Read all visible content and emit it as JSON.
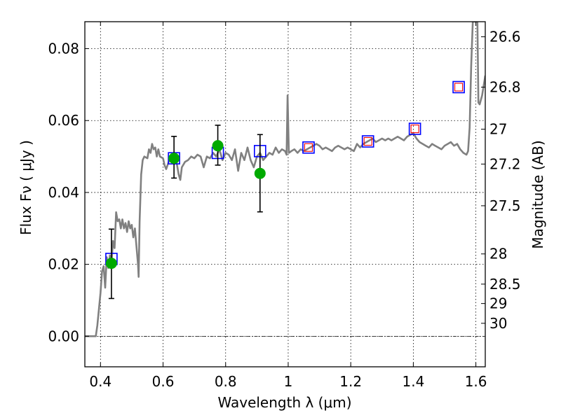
{
  "chart_data": {
    "type": "scatter",
    "xlabel": "Wavelength  λ (μm)",
    "ylabel": "Flux  Fν  ( μJy )",
    "ylabel_right": "Magnitude (AB)",
    "xlim": [
      0.35,
      1.63
    ],
    "ylim": [
      -0.0085,
      0.0875
    ],
    "x_ticks": [
      0.4,
      0.6,
      0.8,
      1.0,
      1.2,
      1.4,
      1.6
    ],
    "x_tick_labels": [
      "0.4",
      "0.6",
      "0.8",
      "1",
      "1.2",
      "1.4",
      "1.6"
    ],
    "y_ticks": [
      0.0,
      0.02,
      0.04,
      0.06,
      0.08
    ],
    "y_tick_labels": [
      "0.00",
      "0.02",
      "0.04",
      "0.06",
      "0.08"
    ],
    "right_ticks": [
      {
        "label": "26.6",
        "flux": 0.0833
      },
      {
        "label": "26.8",
        "flux": 0.0693
      },
      {
        "label": "27",
        "flux": 0.0576
      },
      {
        "label": "27.2",
        "flux": 0.0479
      },
      {
        "label": "27.5",
        "flux": 0.0363
      },
      {
        "label": "28",
        "flux": 0.0229
      },
      {
        "label": "28.5",
        "flux": 0.0145
      },
      {
        "label": "29",
        "flux": 0.0091
      },
      {
        "label": "30",
        "flux": 0.0036
      }
    ],
    "grid": true,
    "zero_line": 0.0,
    "colors": {
      "spectrum": "#808080",
      "model_box": "#0000ff",
      "inner_box": "#ff0000",
      "observed": "#00aa00",
      "errorbar": "#000000"
    },
    "series": [
      {
        "kind": "line",
        "points": [
          [
            0.35,
            0.0
          ],
          [
            0.385,
            0.0
          ],
          [
            0.39,
            0.003
          ],
          [
            0.4,
            0.012
          ],
          [
            0.405,
            0.018
          ],
          [
            0.41,
            0.0195
          ],
          [
            0.415,
            0.0135
          ],
          [
            0.42,
            0.022
          ],
          [
            0.425,
            0.019
          ],
          [
            0.43,
            0.0225
          ],
          [
            0.435,
            0.02
          ],
          [
            0.44,
            0.0265
          ],
          [
            0.445,
            0.0245
          ],
          [
            0.45,
            0.0345
          ],
          [
            0.455,
            0.032
          ],
          [
            0.46,
            0.0325
          ],
          [
            0.465,
            0.03
          ],
          [
            0.47,
            0.0325
          ],
          [
            0.475,
            0.03
          ],
          [
            0.48,
            0.0315
          ],
          [
            0.485,
            0.029
          ],
          [
            0.49,
            0.032
          ],
          [
            0.495,
            0.03
          ],
          [
            0.5,
            0.031
          ],
          [
            0.505,
            0.0275
          ],
          [
            0.51,
            0.03
          ],
          [
            0.515,
            0.025
          ],
          [
            0.52,
            0.02
          ],
          [
            0.522,
            0.0165
          ],
          [
            0.525,
            0.032
          ],
          [
            0.53,
            0.045
          ],
          [
            0.535,
            0.049
          ],
          [
            0.54,
            0.05
          ],
          [
            0.55,
            0.0495
          ],
          [
            0.555,
            0.052
          ],
          [
            0.56,
            0.051
          ],
          [
            0.565,
            0.0535
          ],
          [
            0.57,
            0.052
          ],
          [
            0.575,
            0.0525
          ],
          [
            0.58,
            0.05
          ],
          [
            0.585,
            0.052
          ],
          [
            0.59,
            0.05
          ],
          [
            0.6,
            0.0495
          ],
          [
            0.605,
            0.0475
          ],
          [
            0.61,
            0.0465
          ],
          [
            0.62,
            0.049
          ],
          [
            0.625,
            0.0505
          ],
          [
            0.63,
            0.0495
          ],
          [
            0.64,
            0.05
          ],
          [
            0.645,
            0.0475
          ],
          [
            0.65,
            0.045
          ],
          [
            0.655,
            0.0435
          ],
          [
            0.66,
            0.047
          ],
          [
            0.67,
            0.0485
          ],
          [
            0.68,
            0.049
          ],
          [
            0.69,
            0.05
          ],
          [
            0.7,
            0.0495
          ],
          [
            0.71,
            0.0505
          ],
          [
            0.72,
            0.05
          ],
          [
            0.73,
            0.047
          ],
          [
            0.74,
            0.05
          ],
          [
            0.75,
            0.0495
          ],
          [
            0.76,
            0.051
          ],
          [
            0.77,
            0.05
          ],
          [
            0.78,
            0.052
          ],
          [
            0.79,
            0.049
          ],
          [
            0.8,
            0.051
          ],
          [
            0.81,
            0.0505
          ],
          [
            0.82,
            0.049
          ],
          [
            0.83,
            0.052
          ],
          [
            0.84,
            0.046
          ],
          [
            0.85,
            0.051
          ],
          [
            0.86,
            0.049
          ],
          [
            0.87,
            0.0525
          ],
          [
            0.88,
            0.049
          ],
          [
            0.89,
            0.047
          ],
          [
            0.9,
            0.05
          ],
          [
            0.91,
            0.051
          ],
          [
            0.92,
            0.049
          ],
          [
            0.93,
            0.05
          ],
          [
            0.94,
            0.051
          ],
          [
            0.95,
            0.0505
          ],
          [
            0.96,
            0.0525
          ],
          [
            0.97,
            0.051
          ],
          [
            0.98,
            0.052
          ],
          [
            0.99,
            0.0515
          ],
          [
            0.995,
            0.0505
          ],
          [
            0.998,
            0.067
          ],
          [
            1.002,
            0.051
          ],
          [
            1.01,
            0.0515
          ],
          [
            1.02,
            0.052
          ],
          [
            1.03,
            0.051
          ],
          [
            1.04,
            0.052
          ],
          [
            1.05,
            0.0515
          ],
          [
            1.06,
            0.052
          ],
          [
            1.07,
            0.0525
          ],
          [
            1.08,
            0.053
          ],
          [
            1.09,
            0.0535
          ],
          [
            1.1,
            0.053
          ],
          [
            1.11,
            0.052
          ],
          [
            1.12,
            0.0525
          ],
          [
            1.13,
            0.052
          ],
          [
            1.14,
            0.0515
          ],
          [
            1.15,
            0.0525
          ],
          [
            1.16,
            0.053
          ],
          [
            1.17,
            0.0525
          ],
          [
            1.18,
            0.052
          ],
          [
            1.19,
            0.0525
          ],
          [
            1.2,
            0.052
          ],
          [
            1.21,
            0.0515
          ],
          [
            1.22,
            0.0535
          ],
          [
            1.23,
            0.0525
          ],
          [
            1.24,
            0.0535
          ],
          [
            1.25,
            0.054
          ],
          [
            1.26,
            0.0545
          ],
          [
            1.27,
            0.055
          ],
          [
            1.28,
            0.054
          ],
          [
            1.29,
            0.0545
          ],
          [
            1.3,
            0.055
          ],
          [
            1.31,
            0.0545
          ],
          [
            1.32,
            0.055
          ],
          [
            1.33,
            0.0545
          ],
          [
            1.34,
            0.055
          ],
          [
            1.35,
            0.0555
          ],
          [
            1.36,
            0.055
          ],
          [
            1.37,
            0.0545
          ],
          [
            1.38,
            0.0555
          ],
          [
            1.39,
            0.056
          ],
          [
            1.4,
            0.0565
          ],
          [
            1.41,
            0.055
          ],
          [
            1.42,
            0.054
          ],
          [
            1.43,
            0.0535
          ],
          [
            1.44,
            0.053
          ],
          [
            1.45,
            0.0525
          ],
          [
            1.46,
            0.0535
          ],
          [
            1.47,
            0.053
          ],
          [
            1.48,
            0.0525
          ],
          [
            1.49,
            0.052
          ],
          [
            1.5,
            0.053
          ],
          [
            1.51,
            0.0535
          ],
          [
            1.52,
            0.054
          ],
          [
            1.53,
            0.053
          ],
          [
            1.54,
            0.0535
          ],
          [
            1.55,
            0.052
          ],
          [
            1.56,
            0.051
          ],
          [
            1.57,
            0.0505
          ],
          [
            1.575,
            0.0515
          ],
          [
            1.58,
            0.058
          ],
          [
            1.585,
            0.075
          ],
          [
            1.59,
            0.0875
          ],
          [
            1.6,
            0.0875
          ],
          [
            1.605,
            0.0875
          ],
          [
            1.608,
            0.065
          ],
          [
            1.612,
            0.0645
          ],
          [
            1.62,
            0.067
          ],
          [
            1.63,
            0.0725
          ]
        ]
      },
      {
        "kind": "model-boxes",
        "points": [
          [
            0.435,
            0.0215
          ],
          [
            0.635,
            0.0495
          ],
          [
            0.775,
            0.051
          ],
          [
            0.91,
            0.0515
          ],
          [
            1.065,
            0.0525
          ],
          [
            1.255,
            0.0542
          ],
          [
            1.405,
            0.0577
          ],
          [
            1.545,
            0.0693
          ]
        ]
      },
      {
        "kind": "inner-boxes",
        "points": [
          [
            1.065,
            0.0525
          ],
          [
            1.255,
            0.0542
          ],
          [
            1.405,
            0.0577
          ],
          [
            1.545,
            0.0693
          ]
        ]
      },
      {
        "kind": "observed",
        "points": [
          {
            "x": 0.435,
            "y": 0.0203,
            "lo": 0.0105,
            "hi": 0.0298
          },
          {
            "x": 0.635,
            "y": 0.0495,
            "lo": 0.044,
            "hi": 0.0556
          },
          {
            "x": 0.775,
            "y": 0.053,
            "lo": 0.0476,
            "hi": 0.0587
          },
          {
            "x": 0.91,
            "y": 0.0453,
            "lo": 0.0346,
            "hi": 0.0561
          }
        ]
      }
    ]
  }
}
